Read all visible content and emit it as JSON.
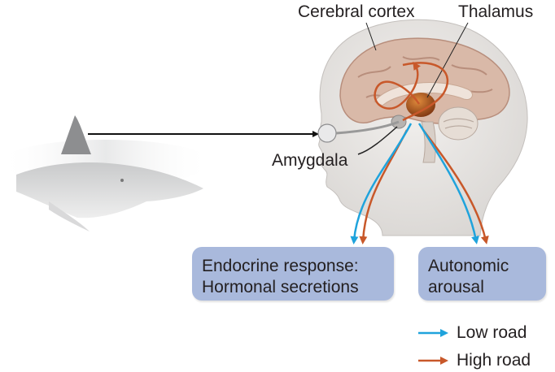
{
  "labels": {
    "cerebral_cortex": "Cerebral cortex",
    "thalamus": "Thalamus",
    "amygdala": "Amygdala"
  },
  "responses": {
    "endocrine_line1": "Endocrine response:",
    "endocrine_line2": "Hormonal secretions",
    "autonomic_line1": "Autonomic",
    "autonomic_line2": "arousal"
  },
  "legend": {
    "low_road": "Low road",
    "high_road": "High road"
  },
  "colors": {
    "low_road": "#1fa3dc",
    "high_road": "#c8582a",
    "box_fill": "#a9b9dc",
    "thalamus": "#b5561c"
  }
}
